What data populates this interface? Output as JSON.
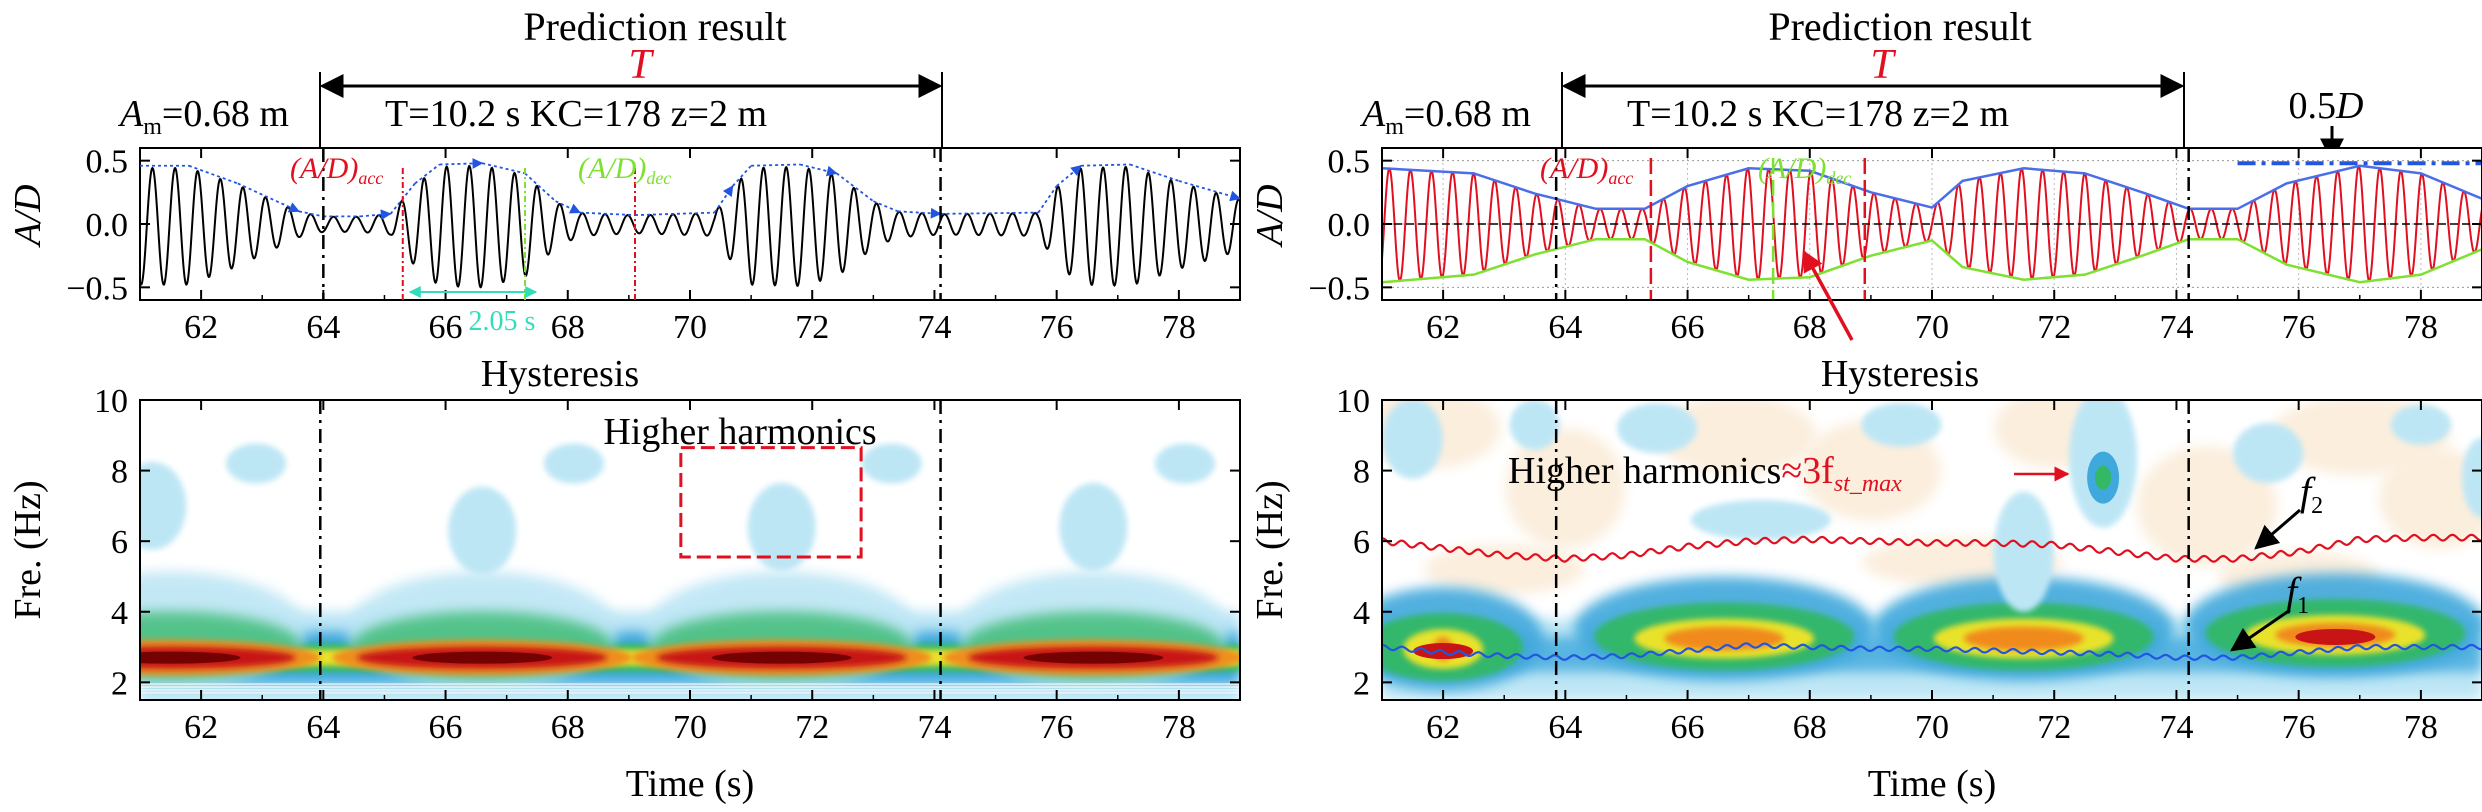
{
  "figure": {
    "colors": {
      "red": "#e01020",
      "green": "#7ee030",
      "blue": "#2255e0",
      "teal": "#33ddbb",
      "signal": "#000000",
      "cwt_low": "#bde6f5",
      "cwt_mid": "#3fa8dc",
      "cwt_green": "#33b866",
      "cwt_yellow": "#e9e22a",
      "cwt_orange": "#f08a1e",
      "cwt_red": "#c81414",
      "cwt_dark": "#6a0000",
      "cwt_cream": "#fbeedd"
    }
  },
  "left": {
    "title": "Prediction result",
    "period_symbol": "T",
    "amplitude_label": "A",
    "amplitude_sub": "m",
    "amplitude_value": "=0.68 m",
    "params": "T=10.2 s KC=178  z=2 m",
    "acc_label": "(A/D)",
    "acc_sub": "acc",
    "dec_label": "(A/D)",
    "dec_sub": "dec",
    "duration_label": "2.05 s",
    "hysteresis": "Hysteresis",
    "harmonics": "Higher harmonics"
  },
  "right": {
    "title": "Prediction result",
    "period_symbol": "T",
    "amplitude_label": "A",
    "amplitude_sub": "m",
    "amplitude_value": "=0.68 m",
    "params": "T=10.2 s KC=178  z=2 m",
    "acc_label": "(A/D)",
    "acc_sub": "acc",
    "dec_label": "(A/D)",
    "dec_sub": "dec",
    "half_d": "0.5D",
    "hysteresis": "Hysteresis",
    "harmonics_prefix": "Higher harmonics",
    "harmonics_approx": "≈3f",
    "harmonics_sub": "st_max",
    "f2": "f",
    "f2_sub": "2",
    "f1": "f",
    "f1_sub": "1"
  },
  "chart_data": [
    {
      "type": "line",
      "panel": "left-top",
      "ylabel": "A/D",
      "xlim": [
        61,
        79
      ],
      "ylim": [
        -0.6,
        0.6
      ],
      "x_ticks": [
        62,
        64,
        66,
        68,
        70,
        72,
        74,
        76,
        78
      ],
      "y_ticks": [
        -0.5,
        0.0,
        0.5
      ],
      "y_tick_labels": [
        "−0.5",
        "0.0",
        "0.5"
      ],
      "vertical_markers": {
        "period_bounds": [
          64.0,
          74.1
        ],
        "acc": [
          65.3,
          69.1
        ],
        "dec": [
          67.3
        ]
      },
      "series": [
        {
          "role": "A/D",
          "signal_frequency_hz": 2.7,
          "envelope_breakpoints": [
            [
              61.0,
              0.46
            ],
            [
              61.8,
              0.46
            ],
            [
              62.6,
              0.32
            ],
            [
              63.6,
              0.1
            ],
            [
              64.0,
              0.06
            ],
            [
              64.6,
              0.06
            ],
            [
              65.1,
              0.08
            ],
            [
              65.5,
              0.32
            ],
            [
              65.9,
              0.47
            ],
            [
              66.6,
              0.48
            ],
            [
              67.3,
              0.4
            ],
            [
              67.8,
              0.18
            ],
            [
              68.2,
              0.09
            ],
            [
              69.1,
              0.07
            ],
            [
              70.4,
              0.09
            ],
            [
              70.7,
              0.3
            ],
            [
              71.0,
              0.46
            ],
            [
              71.8,
              0.47
            ],
            [
              72.4,
              0.4
            ],
            [
              73.0,
              0.18
            ],
            [
              73.4,
              0.1
            ],
            [
              74.1,
              0.08
            ],
            [
              75.7,
              0.09
            ],
            [
              76.0,
              0.3
            ],
            [
              76.4,
              0.46
            ],
            [
              77.2,
              0.47
            ],
            [
              78.0,
              0.34
            ],
            [
              79.0,
              0.2
            ]
          ]
        }
      ]
    },
    {
      "type": "line",
      "panel": "right-top",
      "ylabel": "A/D",
      "xlim": [
        61,
        79
      ],
      "ylim": [
        -0.6,
        0.6
      ],
      "x_ticks": [
        62,
        64,
        66,
        68,
        70,
        72,
        74,
        76,
        78
      ],
      "y_ticks": [
        -0.5,
        0.0,
        0.5
      ],
      "y_tick_labels": [
        "−0.5",
        "0.0",
        "0.5"
      ],
      "reference_line_half_d": 0.48,
      "vertical_markers": {
        "period_bounds": [
          63.85,
          74.2
        ],
        "acc": [
          65.4,
          68.9
        ],
        "dec": [
          67.4
        ]
      },
      "series": [
        {
          "role": "A/D",
          "signal_frequency_hz": 2.9
        },
        {
          "role": "upper envelope",
          "x": [
            61.0,
            62.5,
            63.5,
            64.5,
            65.3,
            66.0,
            67.0,
            68.0,
            69.0,
            70.0,
            70.5,
            71.5,
            72.5,
            73.5,
            74.2,
            75.0,
            75.8,
            77.0,
            78.0,
            79.0
          ],
          "y": [
            0.44,
            0.4,
            0.24,
            0.12,
            0.12,
            0.3,
            0.44,
            0.42,
            0.25,
            0.13,
            0.34,
            0.44,
            0.4,
            0.24,
            0.12,
            0.12,
            0.32,
            0.46,
            0.4,
            0.2
          ]
        },
        {
          "role": "lower envelope",
          "x": [
            61.0,
            62.5,
            63.5,
            64.5,
            65.3,
            66.0,
            67.0,
            68.0,
            69.0,
            70.0,
            70.5,
            71.5,
            72.5,
            73.5,
            74.2,
            75.0,
            75.8,
            77.0,
            78.0,
            79.0
          ],
          "y": [
            -0.46,
            -0.4,
            -0.24,
            -0.12,
            -0.12,
            -0.3,
            -0.44,
            -0.42,
            -0.25,
            -0.13,
            -0.34,
            -0.44,
            -0.4,
            -0.24,
            -0.12,
            -0.12,
            -0.32,
            -0.46,
            -0.4,
            -0.2
          ]
        }
      ]
    },
    {
      "type": "heatmap",
      "panel": "left-bottom",
      "ylabel": "Fre. (Hz)",
      "xlabel": "Time (s)",
      "xlim": [
        61,
        79
      ],
      "ylim": [
        1.5,
        10
      ],
      "x_ticks": [
        62,
        64,
        66,
        68,
        70,
        72,
        74,
        76,
        78
      ],
      "y_ticks": [
        2,
        4,
        6,
        8,
        10
      ],
      "vertical_markers": [
        63.95,
        74.1
      ],
      "energy_band_center_hz": 2.7,
      "band_peaks_x": [
        61.5,
        66.6,
        71.5,
        76.6
      ],
      "harmonic_spots": [
        [
          61.2,
          7.0
        ],
        [
          62.9,
          8.2
        ],
        [
          66.6,
          6.3
        ],
        [
          68.1,
          8.2
        ],
        [
          71.5,
          6.4
        ],
        [
          73.3,
          8.2
        ],
        [
          76.6,
          6.4
        ],
        [
          78.1,
          8.2
        ]
      ],
      "highlight_box": {
        "x": [
          69.85,
          72.8
        ],
        "y": [
          5.55,
          8.65
        ]
      }
    },
    {
      "type": "heatmap",
      "panel": "right-bottom",
      "ylabel": "Fre. (Hz)",
      "xlabel": "Time (s)",
      "xlim": [
        61,
        79
      ],
      "ylim": [
        1.5,
        10
      ],
      "x_ticks": [
        62,
        64,
        66,
        68,
        70,
        72,
        74,
        76,
        78
      ],
      "y_ticks": [
        2,
        4,
        6,
        8,
        10
      ],
      "vertical_markers": [
        63.85,
        74.2
      ],
      "energy_blobs": [
        [
          62.0,
          3.0
        ],
        [
          66.6,
          3.3
        ],
        [
          71.5,
          3.3
        ],
        [
          76.6,
          3.4
        ]
      ],
      "harmonic_peak": [
        72.8,
        7.8
      ],
      "series": [
        {
          "name": "f2",
          "x": [
            61,
            62,
            63,
            64,
            65,
            66,
            67,
            68,
            69,
            70,
            71,
            72,
            73,
            74,
            75,
            76,
            77,
            78,
            79
          ],
          "y": [
            6.0,
            5.8,
            5.6,
            5.5,
            5.6,
            5.85,
            6.0,
            6.05,
            6.0,
            5.95,
            5.95,
            5.9,
            5.7,
            5.5,
            5.5,
            5.7,
            6.05,
            6.1,
            6.1
          ]
        },
        {
          "name": "f1",
          "x": [
            61,
            62,
            63,
            64,
            65,
            66,
            67,
            68,
            69,
            70,
            71,
            72,
            73,
            74,
            75,
            76,
            77,
            78,
            79
          ],
          "y": [
            3.0,
            2.85,
            2.75,
            2.7,
            2.75,
            2.9,
            3.05,
            3.0,
            2.95,
            2.95,
            2.9,
            2.85,
            2.8,
            2.7,
            2.7,
            2.85,
            3.0,
            3.0,
            3.0
          ]
        }
      ]
    }
  ]
}
